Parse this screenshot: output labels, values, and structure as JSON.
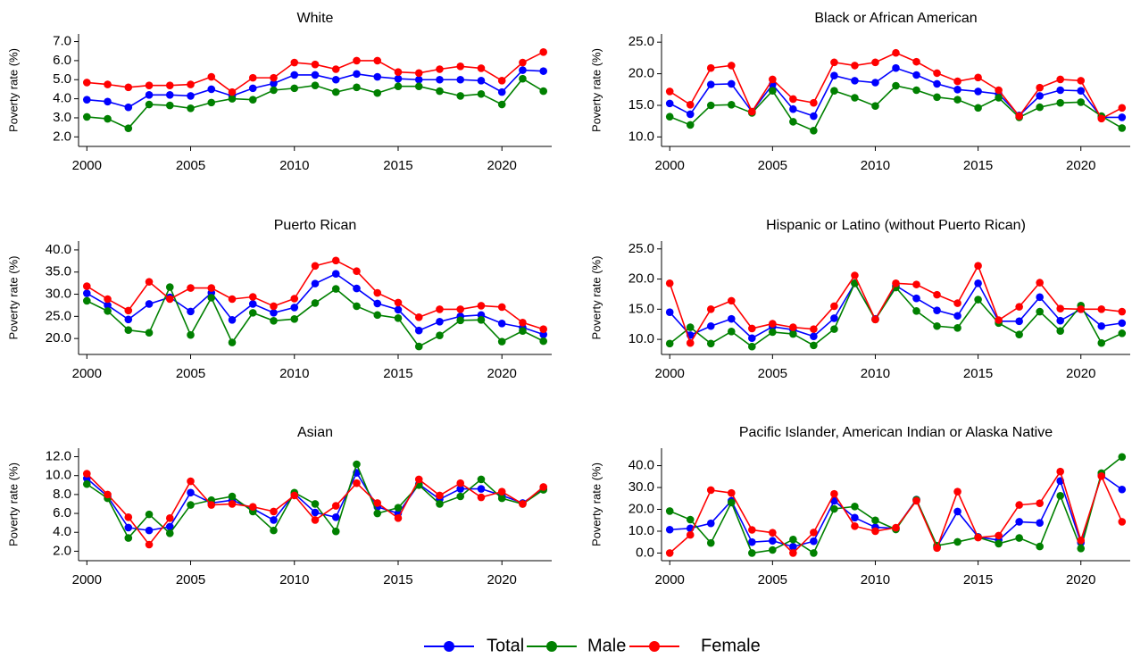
{
  "chart_data": [
    {
      "type": "line",
      "title": "White",
      "ylabel": "Poverty rate (%)",
      "x": [
        2000,
        2001,
        2002,
        2003,
        2004,
        2005,
        2006,
        2007,
        2008,
        2009,
        2010,
        2011,
        2012,
        2013,
        2014,
        2015,
        2016,
        2017,
        2018,
        2019,
        2020,
        2021,
        2022
      ],
      "xlim": [
        1999.6,
        2022.4
      ],
      "xticks": [
        2000,
        2005,
        2010,
        2015,
        2020
      ],
      "ylim": [
        1.5,
        7.4
      ],
      "yticks": [
        {
          "value": 2,
          "label": "2.0"
        },
        {
          "value": 3,
          "label": "3.0"
        },
        {
          "value": 4,
          "label": "4.0"
        },
        {
          "value": 5,
          "label": "5.0"
        },
        {
          "value": 6,
          "label": "6.0"
        },
        {
          "value": 7,
          "label": "7.0"
        }
      ],
      "series": [
        {
          "name": "Total",
          "color": "#0000ff",
          "values": [
            3.95,
            3.85,
            3.55,
            4.2,
            4.2,
            4.15,
            4.5,
            4.15,
            4.55,
            4.8,
            5.25,
            5.25,
            5.0,
            5.3,
            5.15,
            5.05,
            5.0,
            5.0,
            5.0,
            4.95,
            4.35,
            5.5,
            5.45
          ]
        },
        {
          "name": "Male",
          "color": "#008000",
          "values": [
            3.05,
            2.95,
            2.45,
            3.7,
            3.65,
            3.5,
            3.8,
            4.0,
            3.95,
            4.45,
            4.55,
            4.7,
            4.35,
            4.6,
            4.3,
            4.65,
            4.65,
            4.4,
            4.15,
            4.25,
            3.7,
            5.05,
            4.4
          ]
        },
        {
          "name": "Female",
          "color": "#ff0000",
          "values": [
            4.85,
            4.75,
            4.6,
            4.7,
            4.7,
            4.75,
            5.15,
            4.35,
            5.1,
            5.1,
            5.9,
            5.8,
            5.55,
            6.0,
            6.0,
            5.4,
            5.35,
            5.55,
            5.7,
            5.6,
            4.95,
            5.9,
            6.45
          ]
        }
      ]
    },
    {
      "type": "line",
      "title": "Black or African American",
      "ylabel": "Poverty rate (%)",
      "x": [
        2000,
        2001,
        2002,
        2003,
        2004,
        2005,
        2006,
        2007,
        2008,
        2009,
        2010,
        2011,
        2012,
        2013,
        2014,
        2015,
        2016,
        2017,
        2018,
        2019,
        2020,
        2021,
        2022
      ],
      "xlim": [
        1999.6,
        2022.4
      ],
      "xticks": [
        2000,
        2005,
        2010,
        2015,
        2020
      ],
      "ylim": [
        8.5,
        26.3
      ],
      "yticks": [
        {
          "value": 10,
          "label": "10.0"
        },
        {
          "value": 15,
          "label": "15.0"
        },
        {
          "value": 20,
          "label": "20.0"
        },
        {
          "value": 25,
          "label": "25.0"
        }
      ],
      "series": [
        {
          "name": "Total",
          "color": "#0000ff",
          "values": [
            15.3,
            13.6,
            18.3,
            18.4,
            14.0,
            18.3,
            14.4,
            13.3,
            19.7,
            18.9,
            18.6,
            20.9,
            19.8,
            18.4,
            17.5,
            17.2,
            16.8,
            13.4,
            16.5,
            17.4,
            17.3,
            13.1,
            13.1
          ]
        },
        {
          "name": "Male",
          "color": "#008000",
          "values": [
            13.2,
            11.9,
            15.0,
            15.1,
            13.8,
            17.3,
            12.4,
            11.0,
            17.3,
            16.2,
            14.9,
            18.1,
            17.4,
            16.3,
            15.9,
            14.6,
            16.2,
            13.1,
            14.7,
            15.4,
            15.5,
            13.3,
            11.4
          ]
        },
        {
          "name": "Female",
          "color": "#ff0000",
          "values": [
            17.2,
            15.1,
            20.9,
            21.3,
            14.0,
            19.1,
            16.0,
            15.4,
            21.8,
            21.3,
            21.8,
            23.3,
            21.9,
            20.1,
            18.8,
            19.4,
            17.4,
            13.3,
            17.8,
            19.1,
            18.9,
            12.9,
            14.6
          ]
        }
      ]
    },
    {
      "type": "line",
      "title": "Puerto Rican",
      "ylabel": "Poverty rate (%)",
      "x": [
        2000,
        2001,
        2002,
        2003,
        2004,
        2005,
        2006,
        2007,
        2008,
        2009,
        2010,
        2011,
        2012,
        2013,
        2014,
        2015,
        2016,
        2017,
        2018,
        2019,
        2020,
        2021,
        2022
      ],
      "xlim": [
        1999.6,
        2022.4
      ],
      "xticks": [
        2000,
        2005,
        2010,
        2015,
        2020
      ],
      "ylim": [
        16.4,
        42
      ],
      "yticks": [
        {
          "value": 20,
          "label": "20.0"
        },
        {
          "value": 25,
          "label": "25.0"
        },
        {
          "value": 30,
          "label": "30.0"
        },
        {
          "value": 35,
          "label": "35.0"
        },
        {
          "value": 40,
          "label": "40.0"
        }
      ],
      "series": [
        {
          "name": "Total",
          "color": "#0000ff",
          "values": [
            30.2,
            27.5,
            24.3,
            27.8,
            29.3,
            26.1,
            30.3,
            24.2,
            27.8,
            25.8,
            27.0,
            32.4,
            34.6,
            31.3,
            27.9,
            26.5,
            21.8,
            23.8,
            25.0,
            25.3,
            23.4,
            22.5,
            20.9
          ]
        },
        {
          "name": "Male",
          "color": "#008000",
          "values": [
            28.5,
            26.2,
            21.9,
            21.3,
            31.6,
            20.8,
            29.2,
            19.1,
            25.8,
            24.0,
            24.4,
            28.0,
            31.2,
            27.3,
            25.3,
            24.6,
            18.2,
            20.7,
            24.1,
            24.2,
            19.3,
            21.7,
            19.4
          ]
        },
        {
          "name": "Female",
          "color": "#ff0000",
          "values": [
            31.8,
            28.9,
            26.3,
            32.8,
            28.9,
            31.4,
            31.4,
            28.9,
            29.4,
            27.3,
            29.0,
            36.4,
            37.6,
            35.2,
            30.3,
            28.1,
            24.8,
            26.6,
            26.6,
            27.4,
            27.1,
            23.6,
            22.1
          ]
        }
      ]
    },
    {
      "type": "line",
      "title": "Hispanic or Latino (without Puerto Rican)",
      "ylabel": "Poverty rate (%)",
      "x": [
        2000,
        2001,
        2002,
        2003,
        2004,
        2005,
        2006,
        2007,
        2008,
        2009,
        2010,
        2011,
        2012,
        2013,
        2014,
        2015,
        2016,
        2017,
        2018,
        2019,
        2020,
        2021,
        2022
      ],
      "xlim": [
        1999.6,
        2022.4
      ],
      "xticks": [
        2000,
        2005,
        2010,
        2015,
        2020
      ],
      "ylim": [
        7.5,
        26.3
      ],
      "yticks": [
        {
          "value": 10,
          "label": "10.0"
        },
        {
          "value": 15,
          "label": "15.0"
        },
        {
          "value": 20,
          "label": "20.0"
        },
        {
          "value": 25,
          "label": "25.0"
        }
      ],
      "series": [
        {
          "name": "Total",
          "color": "#0000ff",
          "values": [
            14.5,
            10.7,
            12.2,
            13.4,
            10.2,
            12.1,
            11.6,
            10.5,
            13.5,
            19.3,
            13.4,
            18.9,
            16.8,
            14.8,
            13.9,
            19.3,
            13.0,
            13.0,
            17.0,
            13.1,
            15.0,
            12.2,
            12.7
          ]
        },
        {
          "name": "Male",
          "color": "#008000",
          "values": [
            9.3,
            12.0,
            9.3,
            11.3,
            8.8,
            11.2,
            10.9,
            9.0,
            11.7,
            19.3,
            13.3,
            18.6,
            14.7,
            12.2,
            11.9,
            16.6,
            12.7,
            10.8,
            14.6,
            11.4,
            15.6,
            9.4,
            11.0
          ]
        },
        {
          "name": "Female",
          "color": "#ff0000",
          "values": [
            19.3,
            9.4,
            15.0,
            16.4,
            11.8,
            12.6,
            12.0,
            11.7,
            15.5,
            20.6,
            13.3,
            19.3,
            19.1,
            17.4,
            16.0,
            22.2,
            13.2,
            15.4,
            19.4,
            15.1,
            15.0,
            15.0,
            14.6
          ]
        }
      ]
    },
    {
      "type": "line",
      "title": "Asian",
      "ylabel": "Poverty rate (%)",
      "x": [
        2000,
        2001,
        2002,
        2003,
        2004,
        2005,
        2006,
        2007,
        2008,
        2009,
        2010,
        2011,
        2012,
        2013,
        2014,
        2015,
        2016,
        2017,
        2018,
        2019,
        2020,
        2021,
        2022
      ],
      "xlim": [
        1999.6,
        2022.4
      ],
      "xticks": [
        2000,
        2005,
        2010,
        2015,
        2020
      ],
      "ylim": [
        1.0,
        12.9
      ],
      "yticks": [
        {
          "value": 2,
          "label": "2.0"
        },
        {
          "value": 4,
          "label": "4.0"
        },
        {
          "value": 6,
          "label": "6.0"
        },
        {
          "value": 8,
          "label": "8.0"
        },
        {
          "value": 10,
          "label": "10.0"
        },
        {
          "value": 12,
          "label": "12.0"
        }
      ],
      "series": [
        {
          "name": "Total",
          "color": "#0000ff",
          "values": [
            9.7,
            7.8,
            4.5,
            4.2,
            4.6,
            8.2,
            7.1,
            7.4,
            6.5,
            5.3,
            8.1,
            6.1,
            5.6,
            10.3,
            6.7,
            6.0,
            9.1,
            7.5,
            8.6,
            8.6,
            7.9,
            7.1,
            8.6
          ]
        },
        {
          "name": "Male",
          "color": "#008000",
          "values": [
            9.1,
            7.6,
            3.4,
            5.9,
            3.9,
            6.9,
            7.4,
            7.8,
            6.2,
            4.2,
            8.2,
            7.0,
            4.1,
            11.2,
            6.0,
            6.6,
            9.0,
            7.0,
            7.8,
            9.6,
            7.6,
            7.0,
            8.5
          ]
        },
        {
          "name": "Female",
          "color": "#ff0000",
          "values": [
            10.2,
            8.0,
            5.6,
            2.7,
            5.5,
            9.4,
            6.9,
            7.0,
            6.7,
            6.2,
            7.9,
            5.3,
            6.8,
            9.2,
            7.1,
            5.5,
            9.6,
            7.9,
            9.2,
            7.7,
            8.3,
            7.0,
            8.8
          ]
        }
      ]
    },
    {
      "type": "line",
      "title": "Pacific Islander, American Indian or Alaska Native",
      "ylabel": "Poverty rate (%)",
      "x": [
        2000,
        2001,
        2002,
        2003,
        2004,
        2005,
        2006,
        2007,
        2008,
        2009,
        2010,
        2011,
        2012,
        2013,
        2014,
        2015,
        2016,
        2017,
        2018,
        2019,
        2020,
        2021,
        2022
      ],
      "xlim": [
        1999.6,
        2022.4
      ],
      "xticks": [
        2000,
        2005,
        2010,
        2015,
        2020
      ],
      "ylim": [
        -3.5,
        48
      ],
      "yticks": [
        {
          "value": 0,
          "label": "0.0"
        },
        {
          "value": 10,
          "label": "10.0"
        },
        {
          "value": 20,
          "label": "20.0"
        },
        {
          "value": 30,
          "label": "30.0"
        },
        {
          "value": 40,
          "label": "40.0"
        }
      ],
      "series": [
        {
          "name": "Total",
          "color": "#0000ff",
          "values": [
            10.7,
            11.3,
            13.6,
            23.9,
            5.0,
            5.6,
            2.9,
            5.4,
            23.9,
            16.2,
            11.8,
            11.3,
            24.5,
            2.8,
            19.0,
            7.4,
            5.9,
            14.3,
            13.8,
            33.0,
            4.8,
            35.7,
            29.1
          ]
        },
        {
          "name": "Male",
          "color": "#008000",
          "values": [
            19.2,
            15.3,
            4.6,
            23.1,
            0,
            1.4,
            6.2,
            0,
            20.2,
            21.3,
            15.0,
            10.8,
            24.4,
            3.4,
            5.1,
            7.2,
            4.3,
            6.9,
            3.0,
            26.2,
            2.1,
            36.6,
            44.0
          ]
        },
        {
          "name": "Female",
          "color": "#ff0000",
          "values": [
            0,
            8.3,
            28.8,
            27.5,
            10.6,
            9.3,
            0,
            9.4,
            27.1,
            12.3,
            10.0,
            11.6,
            23.9,
            2.3,
            28.1,
            7.1,
            8.0,
            22.0,
            22.8,
            37.3,
            5.8,
            35.2,
            14.3
          ]
        }
      ]
    }
  ]
}
